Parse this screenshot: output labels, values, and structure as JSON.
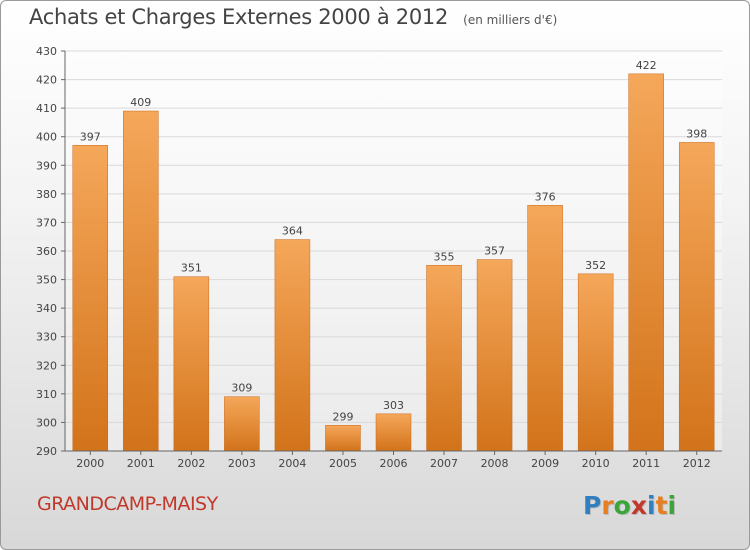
{
  "header": {
    "title": "Achats et Charges Externes 2000 à 2012",
    "unit": "(en milliers d'€)"
  },
  "footer": {
    "commune": "GRANDCAMP-MAISY",
    "logo_letters": [
      "P",
      "r",
      "o",
      "x",
      "i",
      "t",
      "i"
    ],
    "logo_colors": [
      "#2f7fc1",
      "#e67e22",
      "#3aa63a",
      "#c0392b",
      "#2f7fc1",
      "#e67e22",
      "#3aa63a"
    ]
  },
  "colors": {
    "bar_top": "#f5a75a",
    "bar_bottom": "#d2731a",
    "grid": "#d9d9d9",
    "axis": "#666666",
    "text": "#444444",
    "commune": "#c0392b"
  },
  "chart_data": {
    "type": "bar",
    "title": "Achats et Charges Externes 2000 à 2012",
    "xlabel": "",
    "ylabel": "",
    "categories": [
      "2000",
      "2001",
      "2002",
      "2003",
      "2004",
      "2005",
      "2006",
      "2007",
      "2008",
      "2009",
      "2010",
      "2011",
      "2012"
    ],
    "values": [
      397,
      409,
      351,
      309,
      364,
      299,
      303,
      355,
      357,
      376,
      352,
      422,
      398
    ],
    "ylim": [
      290,
      430
    ],
    "yticks": [
      290,
      300,
      310,
      320,
      330,
      340,
      350,
      360,
      370,
      380,
      390,
      400,
      410,
      420,
      430
    ],
    "grid": true,
    "data_labels": true
  }
}
